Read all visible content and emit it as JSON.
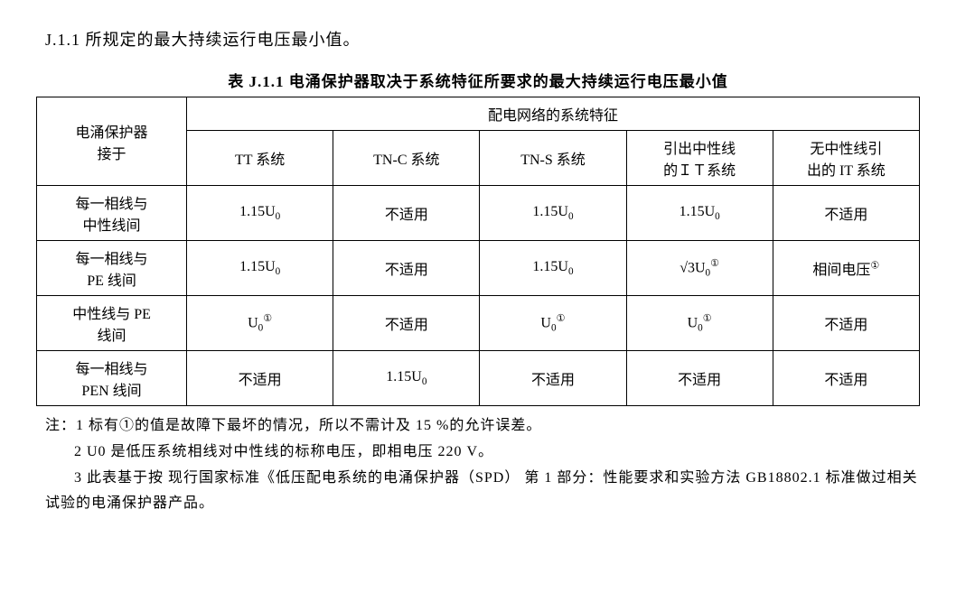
{
  "intro": "J.1.1 所规定的最大持续运行电压最小值。",
  "table": {
    "title": "表 J.1.1 电涌保护器取决于系统特征所要求的最大持续运行电压最小值",
    "header_row1_col0": "电涌保护器\n接于",
    "header_row1_span": "配电网络的系统特征",
    "columns": [
      "TT 系统",
      "TN-C 系统",
      "TN-S 系统",
      "引出中性线\n的ＩＴ系统",
      "无中性线引\n出的 IT 系统"
    ],
    "rows": [
      {
        "label": "每一相线与\n中性线间",
        "cells": [
          "1.15U<sub>0</sub>",
          "不适用",
          "1.15U<sub>0</sub>",
          "1.15U<sub>0</sub>",
          "不适用"
        ]
      },
      {
        "label": "每一相线与\nPE 线间",
        "cells": [
          "1.15U<sub>0</sub>",
          "不适用",
          "1.15U<sub>0</sub>",
          "√3U<sub>0</sub><sup>①</sup>",
          "相间电压<sup>①</sup>"
        ]
      },
      {
        "label": "中性线与 PE\n线间",
        "cells": [
          "U<sub>0</sub><sup>①</sup>",
          "不适用",
          "U<sub>0</sub><sup>①</sup>",
          "U<sub>0</sub><sup>①</sup>",
          "不适用"
        ]
      },
      {
        "label": "每一相线与\nPEN 线间",
        "cells": [
          "不适用",
          "1.15U<sub>0</sub>",
          "不适用",
          "不适用",
          "不适用"
        ]
      }
    ]
  },
  "notes": [
    "注：1 标有①的值是故障下最坏的情况，所以不需计及 15 %的允许误差。",
    "2 U0 是低压系统相线对中性线的标称电压，即相电压 220 V。",
    "3 此表基于按 现行国家标准《低压配电系统的电涌保护器（SPD） 第 1 部分：性能要求和实验方法 GB18802.1 标准做过相关试验的电涌保护器产品。"
  ]
}
